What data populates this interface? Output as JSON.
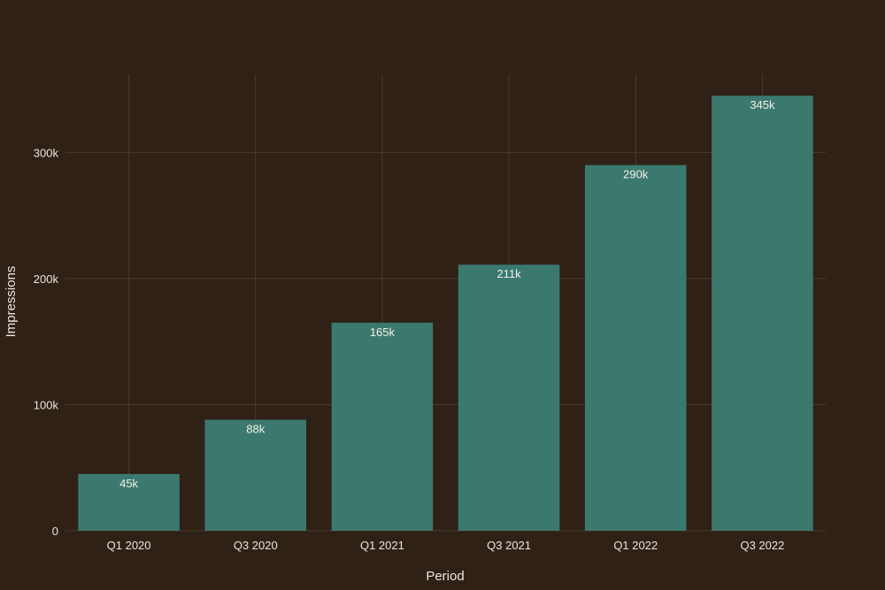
{
  "colors": {
    "background": "#2f2116",
    "bar": "#3b796f",
    "grid": "#4a3a2d",
    "text": "#ece5db"
  },
  "chart_data": {
    "type": "bar",
    "title": "",
    "xlabel": "Period",
    "ylabel": "Impressions",
    "categories": [
      "Q1 2020",
      "Q3 2020",
      "Q1 2021",
      "Q3 2021",
      "Q1 2022",
      "Q3 2022"
    ],
    "series": [
      {
        "values": [
          45000,
          88000,
          165000,
          211000,
          290000,
          345000
        ],
        "data_labels": [
          "45k",
          "88k",
          "165k",
          "211k",
          "290k",
          "345k"
        ]
      }
    ],
    "yticks": [
      0,
      100000,
      200000,
      300000
    ],
    "ytick_labels": [
      "0",
      "100k",
      "200k",
      "300k"
    ],
    "ylim": [
      0,
      362000
    ],
    "grid": true,
    "legend": "none"
  }
}
